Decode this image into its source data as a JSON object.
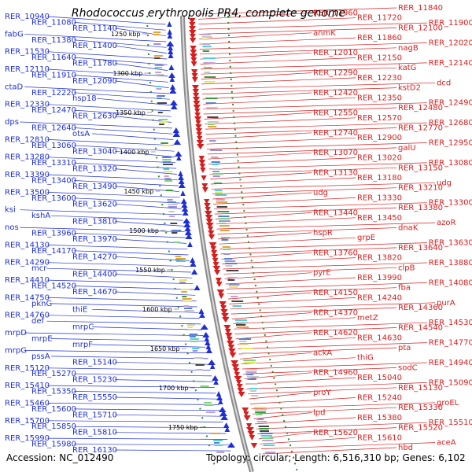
{
  "title": "Rhodococcus erythropolis PR4, complete genome",
  "accession_label": "Accession: NC_012490",
  "topology_label": "Topology: circular; Length: 6,516,310 bp; Genes: 6,102",
  "colors": {
    "forward_strand": "#d81e1e",
    "reverse_strand": "#1e2fd6",
    "backbone": "#8c8c8c",
    "tick_mark": "#2e8b2e"
  },
  "ruler_ticks": [
    "1250 kbp",
    "1300 kbp",
    "1350 kbp",
    "1400 kbp",
    "1450 kbp",
    "1500 kbp",
    "1550 kbp",
    "1600 kbp",
    "1650 kbp",
    "1700 kbp",
    "1750 kbp"
  ],
  "left_labels": [
    "RER_10940",
    "RER_11080",
    "RER_11140",
    "fabG",
    "RER_11380",
    "RER_11400",
    "RER_11530",
    "RER_11640",
    "RER_11780",
    "RER_12110",
    "RER_11910",
    "RER_12090",
    "ctaD",
    "RER_12220",
    "hsp18",
    "RER_12330",
    "RER_12470",
    "RER_12630",
    "dps",
    "RER_12640",
    "otsA",
    "RER_12810",
    "RER_13060",
    "RER_13040",
    "RER_13280",
    "RER_13310",
    "RER_13320",
    "RER_13390",
    "RER_13400",
    "RER_13490",
    "RER_13500",
    "RER_13600",
    "RER_13620",
    "ksi",
    "kshA",
    "RER_13810",
    "nos",
    "RER_13960",
    "RER_13970",
    "RER_14130",
    "RER_14170",
    "RER_14270",
    "RER_14290",
    "mcr",
    "RER_14400",
    "RER_14410",
    "RER_14520",
    "RER_14670",
    "RER_14750",
    "pknG",
    "thiE",
    "RER_14760",
    "def",
    "mrpC",
    "mrpD",
    "mrpE",
    "mrpF",
    "mrpG",
    "pssA",
    "RER_15140",
    "RER_15120",
    "RER_15270",
    "RER_15230",
    "RER_15410",
    "RER_15350",
    "RER_15550",
    "RER_15460",
    "RER_15600",
    "RER_15710",
    "RER_15700",
    "RER_15850",
    "RER_15810",
    "RER_15990",
    "RER_15980",
    "RER_16130"
  ],
  "right_labels": [
    "RER_11840",
    "RER_11960",
    "RER_11720",
    "RER_11900",
    "RER_12100",
    "anmK",
    "RER_11860",
    "RER_12020",
    "nagB",
    "RER_12010",
    "RER_12150",
    "RER_12140",
    "katG",
    "RER_12290",
    "RER_12230",
    "dcd",
    "kstD2",
    "RER_12420",
    "RER_12350",
    "RER_12490",
    "RER_12480",
    "RER_12550",
    "RER_12570",
    "RER_12680",
    "RER_12770",
    "RER_12740",
    "RER_12900",
    "RER_12950",
    "galU",
    "RER_13070",
    "RER_13020",
    "RER_13080",
    "RER_13150",
    "RER_13130",
    "RER_13180",
    "udg",
    "RER_13210",
    "udg",
    "RER_13330",
    "RER_13300",
    "RER_13380",
    "RER_13440",
    "RER_13450",
    "azoR",
    "dnaK",
    "hspR",
    "grpE",
    "RER_13630",
    "RER_13640",
    "RER_13760",
    "RER_13820",
    "RER_13880",
    "clpB",
    "pyrE",
    "RER_13990",
    "RER_14080",
    "fba",
    "RER_14150",
    "RER_14240",
    "purA",
    "RER_14360",
    "RER_14370",
    "metZ",
    "RER_14530",
    "RER_14540",
    "RER_14620",
    "RER_14630",
    "RER_14770",
    "pta",
    "ackA",
    "thiG",
    "RER_14940",
    "sodC",
    "RER_14960",
    "RER_15040",
    "RER_15090",
    "RER_15130",
    "proY",
    "RER_15240",
    "groEL",
    "RER_15330",
    "lpd",
    "RER_15380",
    "RER_15510",
    "RER_15520",
    "RER_15620",
    "RER_15610",
    "aceA",
    "hbd"
  ]
}
